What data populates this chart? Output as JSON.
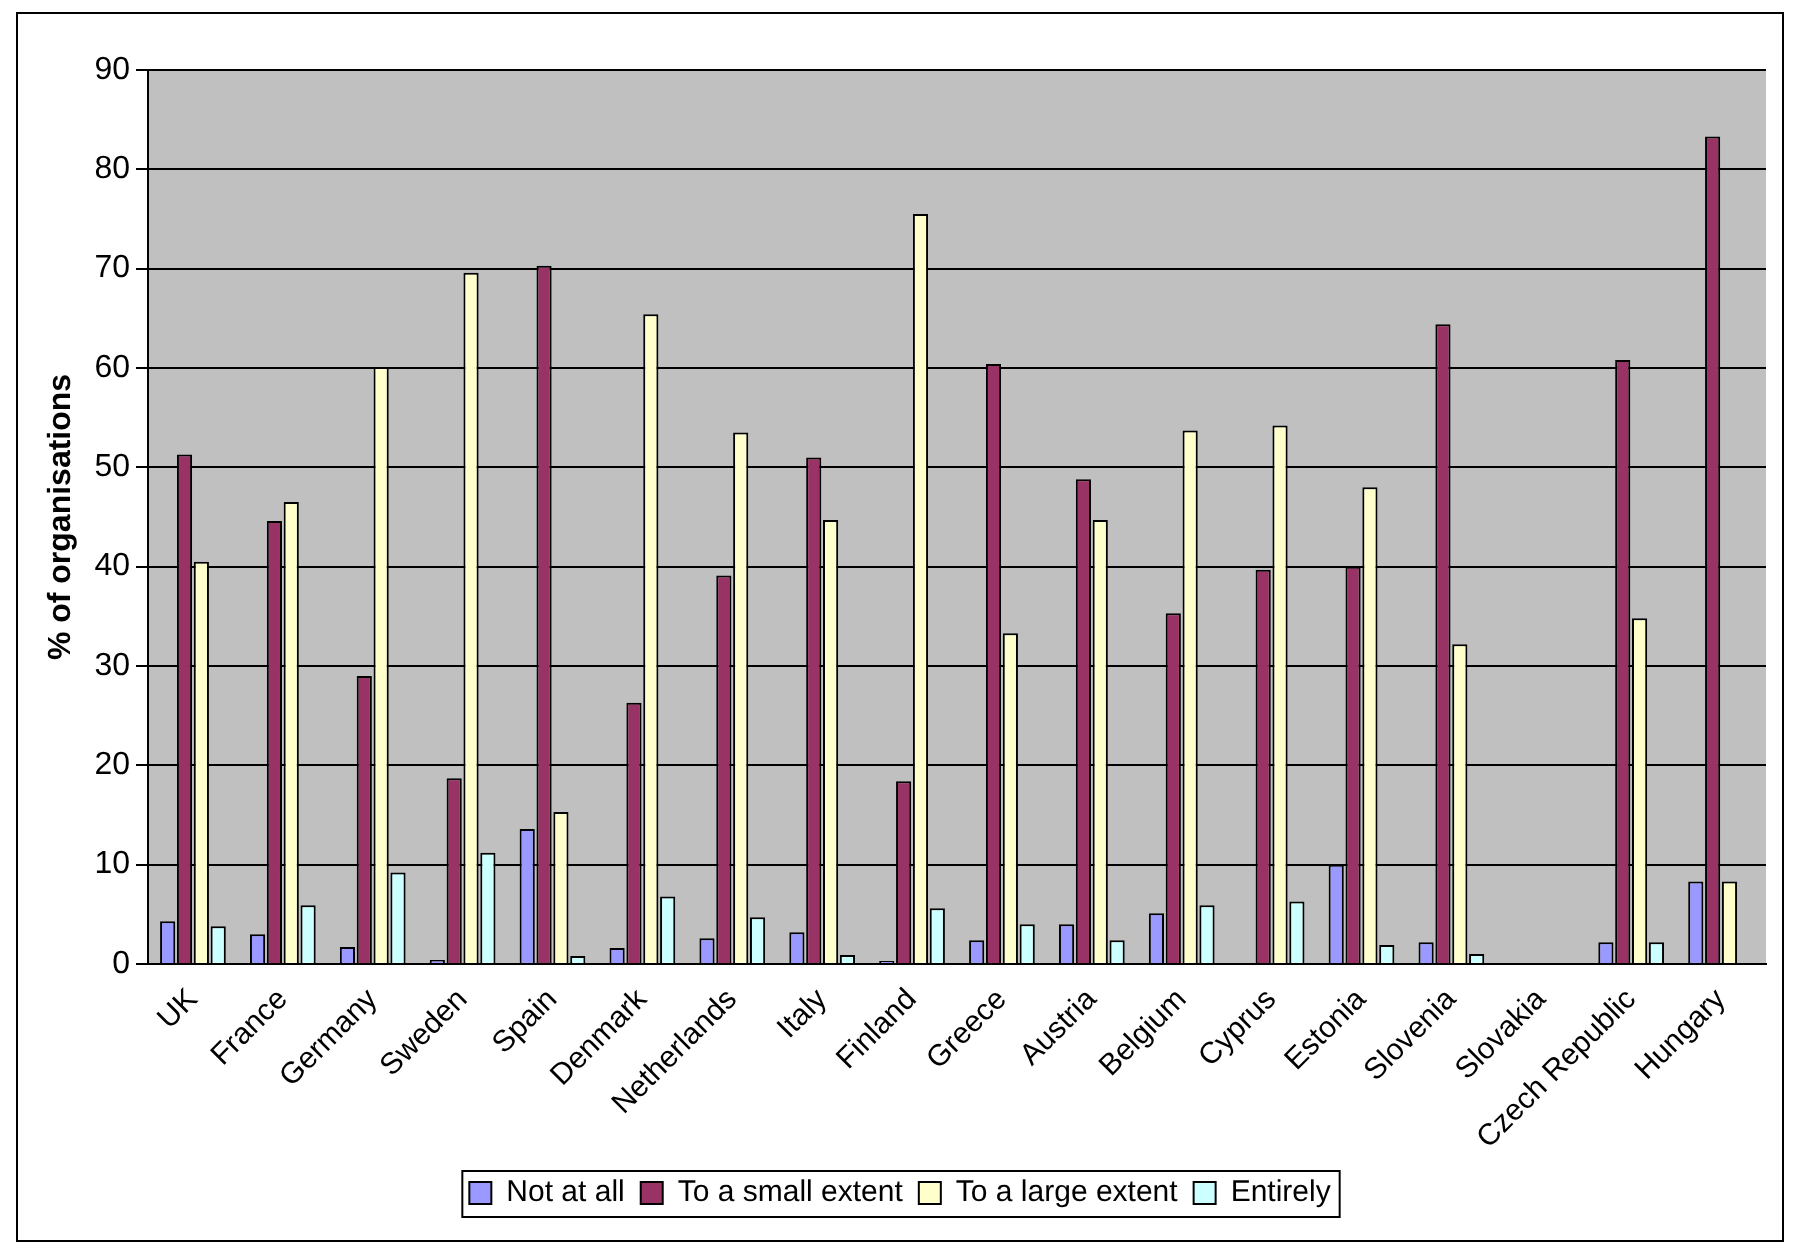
{
  "chart_data": {
    "type": "bar",
    "ylabel": "% of organisations",
    "categories": [
      "UK",
      "France",
      "Germany",
      "Sweden",
      "Spain",
      "Denmark",
      "Netherlands",
      "Italy",
      "Finland",
      "Greece",
      "Austria",
      "Belgium",
      "Cyprus",
      "Estonia",
      "Slovenia",
      "Slovakia",
      "Czech Republic",
      "Hungary"
    ],
    "series": [
      {
        "name": "Not at all",
        "color": "#9999ff",
        "values": [
          4.3,
          3,
          1.7,
          0.4,
          13.6,
          1.6,
          2.6,
          3.2,
          0.3,
          2.4,
          4,
          5.1,
          0,
          10,
          2.2,
          null,
          2.2,
          8.3
        ]
      },
      {
        "name": "To a small extent",
        "color": "#993366",
        "values": [
          51.3,
          44.6,
          29,
          18.7,
          70.3,
          26.3,
          39.1,
          51,
          18.4,
          60.4,
          48.8,
          35.3,
          39.7,
          40,
          64.4,
          null,
          60.8,
          83.3
        ]
      },
      {
        "name": "To a large extent",
        "color": "#ffffcc",
        "values": [
          40.5,
          46.5,
          60.1,
          69.6,
          15.3,
          65.4,
          53.5,
          44.7,
          75.5,
          33.3,
          44.7,
          53.7,
          54.2,
          48,
          32.2,
          null,
          34.8,
          8.3
        ]
      },
      {
        "name": "Entirely",
        "color": "#ccffff",
        "values": [
          3.8,
          5.9,
          9.2,
          11.2,
          0.8,
          6.8,
          4.7,
          0.9,
          5.6,
          4,
          2.4,
          5.9,
          6.3,
          1.9,
          1,
          null,
          2.2,
          0
        ]
      }
    ],
    "ylim": [
      0,
      90
    ],
    "yticks": [
      0,
      10,
      20,
      30,
      40,
      50,
      60,
      70,
      80,
      90
    ],
    "grid": "y",
    "legend": "bottom"
  }
}
